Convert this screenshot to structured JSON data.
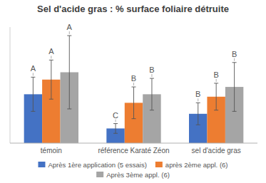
{
  "chart_data": {
    "type": "bar",
    "title": "Sel d'acide gras : % surface foliaire détruite",
    "categories": [
      "témoin",
      "référence Karaté Zéon",
      "sel d'acide gras"
    ],
    "series": [
      {
        "name": "Après 1ère application (5 essais)",
        "color": "#4472C4",
        "values": [
          40,
          12,
          24
        ],
        "errors": [
          14,
          4,
          9
        ],
        "letters": [
          "A",
          "C",
          "B"
        ]
      },
      {
        "name": "après 2ème appl. (6)",
        "color": "#ED7D31",
        "values": [
          52,
          33,
          38
        ],
        "errors": [
          16,
          13,
          11
        ],
        "letters": [
          "A",
          "B",
          "B"
        ]
      },
      {
        "name": "Après 3ème appl. (6)",
        "color": "#A5A5A5",
        "values": [
          58,
          40,
          46
        ],
        "errors": [
          30,
          13,
          20
        ],
        "letters": [
          "A",
          "B",
          "B"
        ]
      }
    ],
    "ylim": [
      0,
      95
    ],
    "yticks": [],
    "grid": false,
    "legend": "bottom",
    "tick_labels": "x"
  }
}
